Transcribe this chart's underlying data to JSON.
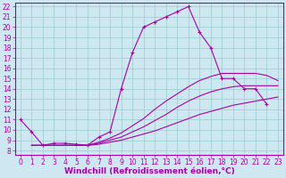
{
  "bg_color": "#cde8f0",
  "line_color": "#aa00aa",
  "grid_color": "#99cccc",
  "xlabel": "Windchill (Refroidissement éolien,°C)",
  "ylabel_ticks": [
    8,
    9,
    10,
    11,
    12,
    13,
    14,
    15,
    16,
    17,
    18,
    19,
    20,
    21,
    22
  ],
  "xlabel_ticks": [
    0,
    1,
    2,
    3,
    4,
    5,
    6,
    7,
    8,
    9,
    10,
    11,
    12,
    13,
    14,
    15,
    16,
    17,
    18,
    19,
    20,
    21,
    22,
    23
  ],
  "ylim": [
    7.6,
    22.4
  ],
  "xlim": [
    -0.5,
    23.5
  ],
  "lines": [
    {
      "x": [
        0,
        1,
        2,
        3,
        4,
        5,
        6,
        7,
        8,
        9,
        10,
        11,
        12,
        13,
        14,
        15,
        16,
        17,
        18,
        19,
        20,
        21,
        22
      ],
      "y": [
        11.0,
        9.8,
        8.5,
        8.7,
        8.7,
        8.6,
        8.5,
        9.3,
        9.8,
        14.0,
        17.5,
        20.0,
        20.5,
        21.0,
        21.5,
        22.0,
        19.5,
        18.0,
        15.0,
        15.0,
        14.0,
        14.0,
        12.5
      ],
      "marker": "+"
    },
    {
      "x": [
        1,
        2,
        3,
        4,
        5,
        6,
        7,
        8,
        9,
        10,
        11,
        12,
        13,
        14,
        15,
        16,
        17,
        18,
        19,
        20,
        21,
        22,
        23
      ],
      "y": [
        8.5,
        8.5,
        8.5,
        8.5,
        8.5,
        8.5,
        8.6,
        8.8,
        9.0,
        9.3,
        9.6,
        9.9,
        10.3,
        10.7,
        11.1,
        11.5,
        11.8,
        12.1,
        12.4,
        12.6,
        12.8,
        13.0,
        13.2
      ],
      "marker": null
    },
    {
      "x": [
        1,
        2,
        3,
        4,
        5,
        6,
        7,
        8,
        9,
        10,
        11,
        12,
        13,
        14,
        15,
        16,
        17,
        18,
        19,
        20,
        21,
        22,
        23
      ],
      "y": [
        8.5,
        8.5,
        8.5,
        8.5,
        8.5,
        8.5,
        8.7,
        9.0,
        9.3,
        9.8,
        10.3,
        10.9,
        11.5,
        12.2,
        12.8,
        13.3,
        13.7,
        14.0,
        14.2,
        14.3,
        14.3,
        14.3,
        14.3
      ],
      "marker": null
    },
    {
      "x": [
        1,
        2,
        3,
        4,
        5,
        6,
        7,
        8,
        9,
        10,
        11,
        12,
        13,
        14,
        15,
        16,
        17,
        18,
        19,
        20,
        21,
        22,
        23
      ],
      "y": [
        8.5,
        8.5,
        8.5,
        8.5,
        8.5,
        8.5,
        8.8,
        9.2,
        9.7,
        10.4,
        11.1,
        12.0,
        12.8,
        13.5,
        14.2,
        14.8,
        15.2,
        15.5,
        15.5,
        15.5,
        15.5,
        15.3,
        14.8
      ],
      "marker": null
    }
  ],
  "tick_fontsize": 5.5,
  "xlabel_fontsize": 6.5
}
